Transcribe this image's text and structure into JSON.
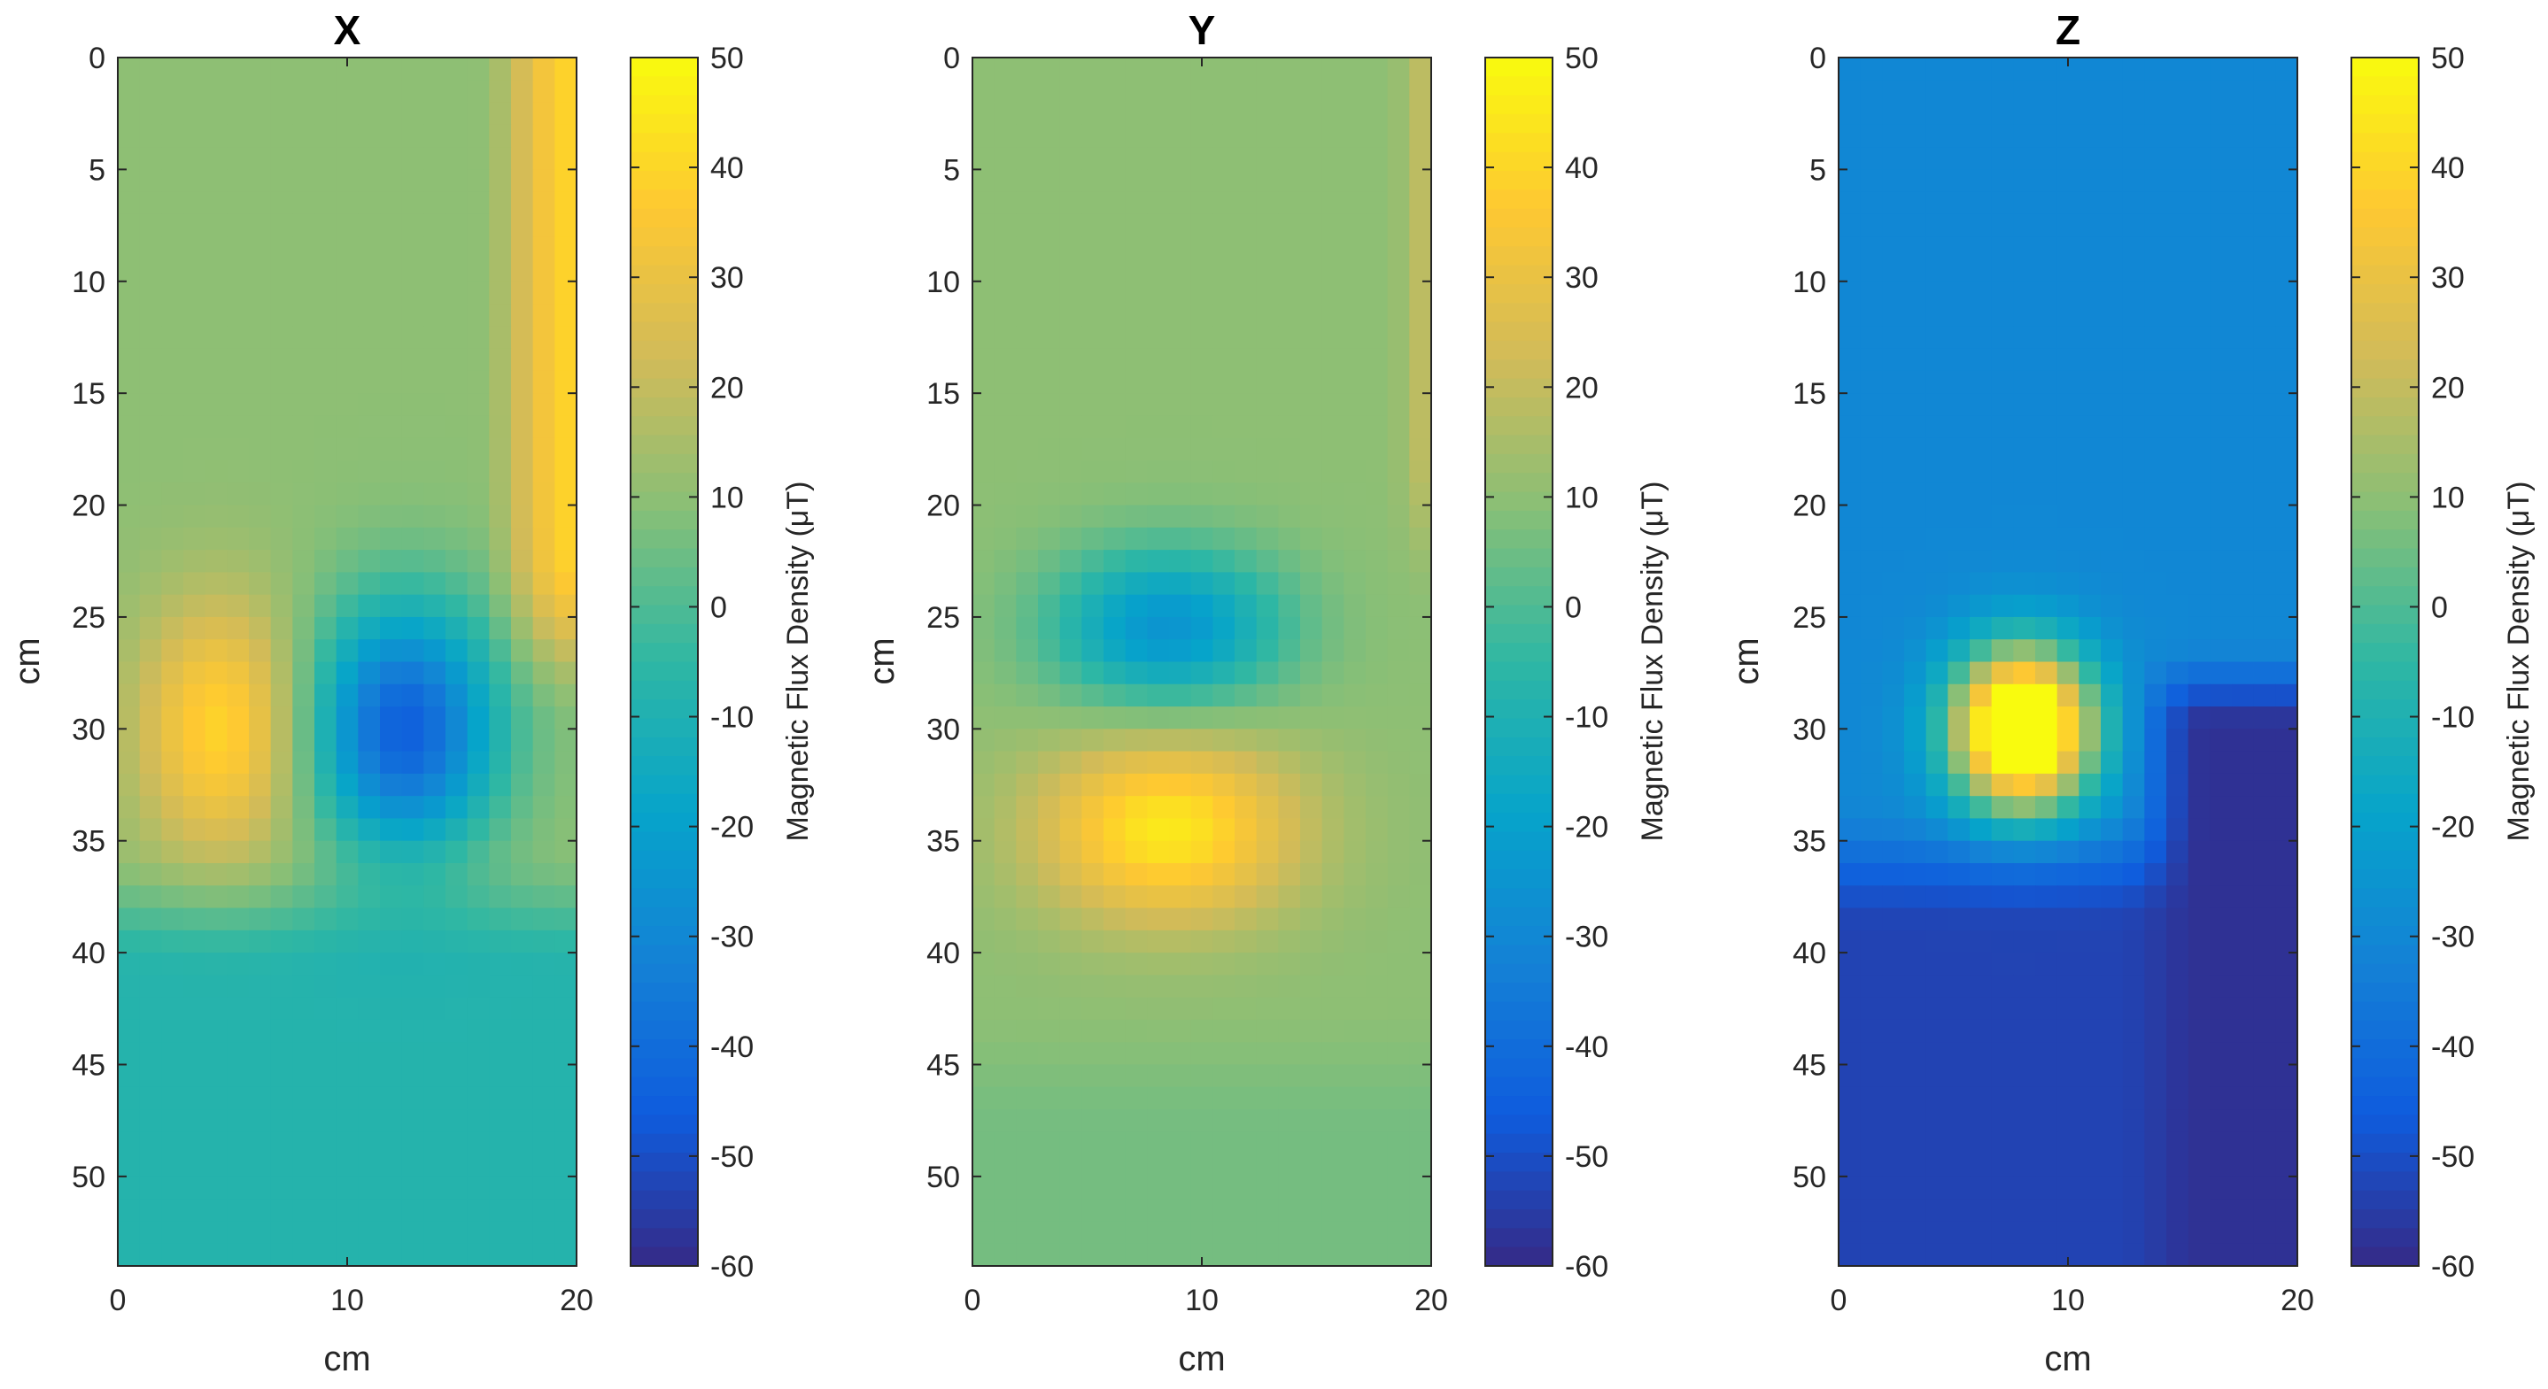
{
  "chart_data": [
    {
      "type": "heatmap",
      "title": "X",
      "xlabel": "cm",
      "ylabel": "cm",
      "xlim": [
        0,
        20
      ],
      "ylim": [
        0,
        54
      ],
      "y_direction": "reversed",
      "x_ticks": [
        0,
        10,
        20
      ],
      "y_ticks": [
        0,
        5,
        10,
        15,
        20,
        25,
        30,
        35,
        40,
        45,
        50
      ],
      "colorbar": {
        "label": "Magnetic Flux Density (μT)",
        "range": [
          -60,
          50
        ],
        "ticks": [
          50,
          40,
          30,
          20,
          10,
          0,
          -10,
          -20,
          -30,
          -40,
          -50,
          -60
        ]
      },
      "background": 10,
      "features": [
        {
          "kind": "blob",
          "center": [
            4.5,
            30
          ],
          "radius": [
            3.5,
            5.5
          ],
          "peak": 40
        },
        {
          "kind": "blob",
          "center": [
            12.5,
            30
          ],
          "radius": [
            4,
            5.5
          ],
          "peak": -45
        },
        {
          "kind": "edge_high",
          "x_from": 15.5,
          "x_to": 20,
          "y_from": 0,
          "y_to": 30,
          "peak": 40
        },
        {
          "kind": "lower_low",
          "y_from": 35,
          "y_to": 54,
          "value": -8
        }
      ]
    },
    {
      "type": "heatmap",
      "title": "Y",
      "xlabel": "cm",
      "ylabel": "cm",
      "xlim": [
        0,
        20
      ],
      "ylim": [
        0,
        54
      ],
      "y_direction": "reversed",
      "x_ticks": [
        0,
        10,
        20
      ],
      "y_ticks": [
        0,
        5,
        10,
        15,
        20,
        25,
        30,
        35,
        40,
        45,
        50
      ],
      "colorbar": {
        "label": "Magnetic Flux Density (μT)",
        "range": [
          -60,
          50
        ],
        "ticks": [
          50,
          40,
          30,
          20,
          10,
          0,
          -10,
          -20,
          -30,
          -40,
          -50,
          -60
        ]
      },
      "background": 10,
      "features": [
        {
          "kind": "blob",
          "center": [
            8.5,
            25.5
          ],
          "radius": [
            5,
            3.5
          ],
          "peak": -25
        },
        {
          "kind": "blob",
          "center": [
            8.5,
            34.5
          ],
          "radius": [
            5.5,
            4
          ],
          "peak": 45
        },
        {
          "kind": "edge_high",
          "x_from": 18,
          "x_to": 20,
          "y_from": 0,
          "y_to": 25,
          "peak": 20
        },
        {
          "kind": "lower_low",
          "y_from": 42,
          "y_to": 54,
          "value": 6
        }
      ]
    },
    {
      "type": "heatmap",
      "title": "Z",
      "xlabel": "cm",
      "ylabel": "cm",
      "xlim": [
        0,
        20
      ],
      "ylim": [
        0,
        54
      ],
      "y_direction": "reversed",
      "x_ticks": [
        0,
        10,
        20
      ],
      "y_ticks": [
        0,
        5,
        10,
        15,
        20,
        25,
        30,
        35,
        40,
        45,
        50
      ],
      "colorbar": {
        "label": "Magnetic Flux Density (μT)",
        "range": [
          -60,
          50
        ],
        "ticks": [
          50,
          40,
          30,
          20,
          10,
          0,
          -10,
          -20,
          -30,
          -40,
          -50,
          -60
        ]
      },
      "background": -30,
      "features": [
        {
          "kind": "blob",
          "center": [
            8,
            30
          ],
          "radius": [
            3,
            3.5
          ],
          "peak": 80
        },
        {
          "kind": "lower_low",
          "y_from": 33,
          "y_to": 54,
          "value": -53
        },
        {
          "kind": "corner_low",
          "x_from": 14,
          "y_from": 28,
          "value": -58
        }
      ]
    }
  ],
  "colors": {
    "parula": [
      "#352a87",
      "#0f5cdd",
      "#1481d6",
      "#06a4ca",
      "#2eb7a4",
      "#87bf77",
      "#d1bb59",
      "#fec832",
      "#f9fb0e"
    ],
    "axis": "#262626",
    "background": "#ffffff"
  }
}
